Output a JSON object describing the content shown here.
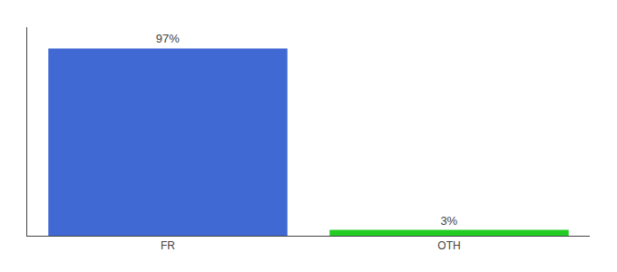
{
  "chart_data": {
    "type": "bar",
    "categories": [
      "FR",
      "OTH"
    ],
    "values": [
      97,
      3
    ],
    "value_labels": [
      "97%",
      "3%"
    ],
    "data_labels": true,
    "colors": [
      "#4169d4",
      "#22cc22"
    ],
    "ylim": [
      0,
      108
    ],
    "tick_labels": "x",
    "grid": false
  }
}
